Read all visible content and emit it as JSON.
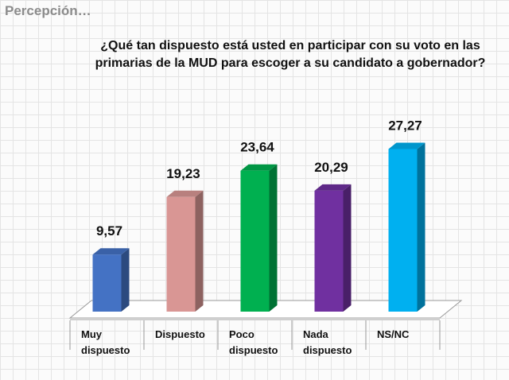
{
  "header": "Percepción…",
  "chart_data": {
    "type": "bar3d",
    "title": "¿Qué tan dispuesto está usted en participar con su voto en las primarias de la MUD para escoger a su candidato a gobernador?",
    "categories": [
      "Muy dispuesto",
      "Dispuesto",
      "Poco dispuesto",
      "Nada dispuesto",
      "NS/NC"
    ],
    "values": [
      9.57,
      19.23,
      23.64,
      20.29,
      27.27
    ],
    "value_labels": [
      "9,57",
      "19,23",
      "23,64",
      "20,29",
      "27,27"
    ],
    "colors": [
      "#4472c4",
      "#d99694",
      "#00b050",
      "#7030a0",
      "#00b0f0"
    ]
  }
}
